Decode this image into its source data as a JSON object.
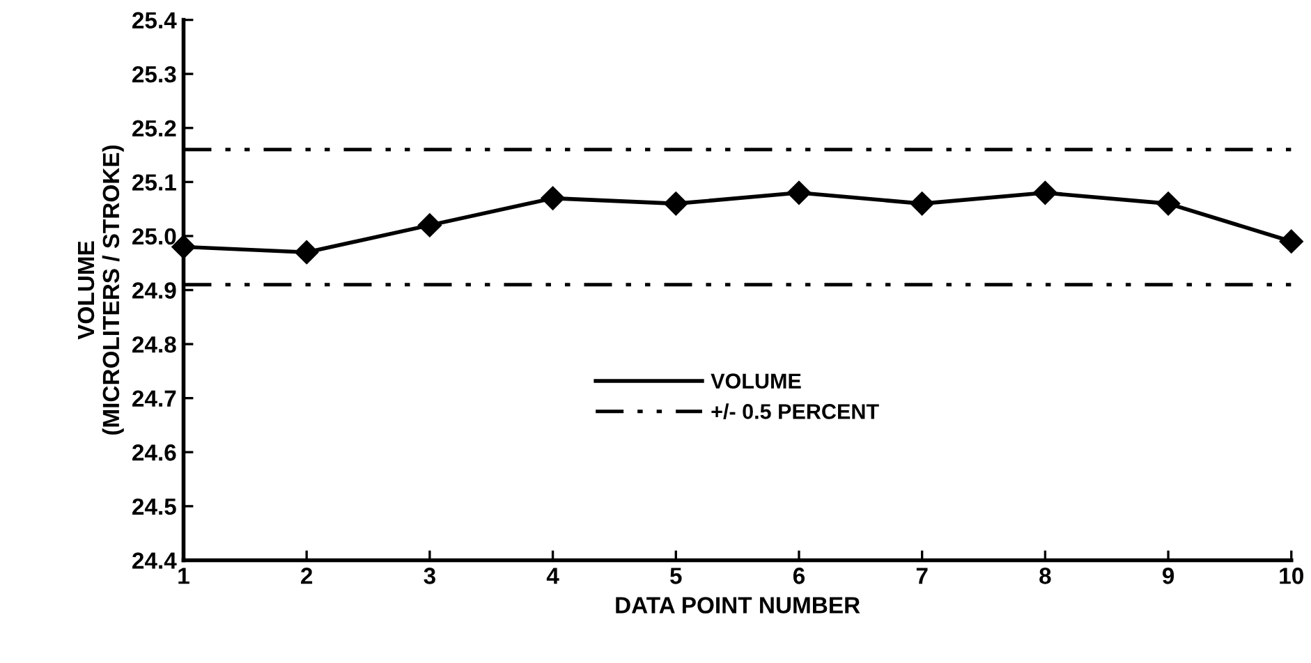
{
  "chart_data": {
    "type": "line",
    "xlabel": "DATA POINT NUMBER",
    "ylabel": "VOLUME\n(MICROLITERS / STROKE)",
    "x": [
      1,
      2,
      3,
      4,
      5,
      6,
      7,
      8,
      9,
      10
    ],
    "series": [
      {
        "name": "VOLUME",
        "color": "#000000",
        "values": [
          24.98,
          24.97,
          25.02,
          25.07,
          25.06,
          25.08,
          25.06,
          25.08,
          25.06,
          24.99
        ]
      }
    ],
    "ref_lines": [
      {
        "axis": "y",
        "value": 25.16,
        "label": "+/- 0.5 PERCENT",
        "color": "#000000",
        "line_style": "dashdotdot"
      },
      {
        "axis": "y",
        "value": 24.91,
        "color": "#000000",
        "line_style": "dashdotdot"
      }
    ],
    "xlim": [
      1,
      10
    ],
    "xticks": [
      1,
      2,
      3,
      4,
      5,
      6,
      7,
      8,
      9,
      10
    ],
    "ylim": [
      24.4,
      25.4
    ],
    "yticks": [
      {
        "value": 24.4,
        "label": "24.4"
      },
      {
        "value": 24.5,
        "label": "24.5"
      },
      {
        "value": 24.6,
        "label": "24.6"
      },
      {
        "value": 24.7,
        "label": "24.7"
      },
      {
        "value": 24.8,
        "label": "24.8"
      },
      {
        "value": 24.9,
        "label": "24.9"
      },
      {
        "value": 25.0,
        "label": "25.0"
      },
      {
        "value": 25.1,
        "label": "25.1"
      },
      {
        "value": 25.2,
        "label": "25.2"
      },
      {
        "value": 25.3,
        "label": "25.3"
      },
      {
        "value": 25.4,
        "label": "25.4"
      }
    ],
    "grid": false,
    "legend": "center",
    "marker": "diamond",
    "line_style": "solid"
  }
}
